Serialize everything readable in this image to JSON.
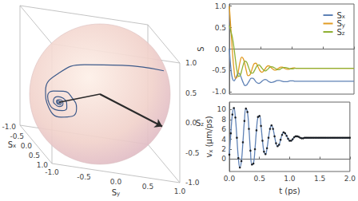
{
  "chart_data": [
    {
      "type": "bloch_sphere",
      "x_label": "Sx",
      "y_label": "Sy",
      "z_label": "Sz",
      "xlim": [
        -1,
        1
      ],
      "ylim": [
        -1,
        1
      ],
      "zlim": [
        -1,
        1
      ],
      "xticks": [
        {
          "value": -1,
          "label": "-1.0"
        },
        -0.5,
        {
          "value": 0,
          "label": "0.0"
        },
        0.5,
        {
          "value": 1,
          "label": "1.0"
        }
      ],
      "yticks": [
        {
          "value": -1,
          "label": "-1.0"
        },
        -0.5,
        {
          "value": 0,
          "label": "0.0"
        },
        0.5,
        {
          "value": 1,
          "label": "1.0"
        }
      ],
      "zticks": [
        {
          "value": -1,
          "label": "-1.0"
        },
        -0.5,
        {
          "value": 0,
          "label": "0.0"
        },
        0.5,
        {
          "value": 1,
          "label": "1.0"
        }
      ],
      "color": "#3d5a8a",
      "arrow": [
        0.3,
        0.9,
        -0.3
      ]
    },
    {
      "type": "line",
      "y_label": "S",
      "x": [
        0,
        0.025,
        0.05,
        0.075,
        0.1,
        0.125,
        0.15,
        0.175,
        0.2,
        0.225,
        0.25,
        0.275,
        0.3,
        0.325,
        0.35,
        0.375,
        0.4,
        0.425,
        0.45,
        0.475,
        0.5,
        0.525,
        0.55,
        0.575,
        0.6,
        0.625,
        0.65,
        0.675,
        0.7,
        0.725,
        0.75,
        0.775,
        0.8,
        0.825,
        0.85,
        0.875,
        0.9,
        0.925,
        0.95,
        0.975,
        1,
        1.025,
        1.05,
        1.075,
        1.1,
        1.125,
        1.15,
        1.175,
        1.2,
        1.225,
        1.25,
        1.275,
        1.3,
        1.325,
        1.35,
        1.375,
        1.4,
        1.425,
        1.45,
        1.475,
        1.5,
        1.525,
        1.55,
        1.575,
        1.6,
        1.625,
        1.65,
        1.675,
        1.7,
        1.725,
        1.75,
        1.775,
        1.8,
        1.825,
        1.85,
        1.875,
        1.9,
        1.925,
        1.95,
        1.975,
        2
      ],
      "series": [
        {
          "name": "Sx",
          "color": "#5e81b5",
          "values": [
            0.0,
            -0.45,
            -0.69,
            -0.74,
            -0.68,
            -0.6,
            -0.56,
            -0.61,
            -0.7,
            -0.79,
            -0.85,
            -0.84,
            -0.79,
            -0.73,
            -0.68,
            -0.68,
            -0.71,
            -0.76,
            -0.79,
            -0.8,
            -0.78,
            -0.75,
            -0.72,
            -0.71,
            -0.72,
            -0.75,
            -0.77,
            -0.78,
            -0.77,
            -0.76,
            -0.74,
            -0.73,
            -0.73,
            -0.74,
            -0.75,
            -0.76,
            -0.76,
            -0.76,
            -0.75,
            -0.74,
            -0.74,
            -0.74,
            -0.75,
            -0.75,
            -0.75,
            -0.75,
            -0.75,
            -0.75,
            -0.75,
            -0.75,
            -0.75,
            -0.75,
            -0.75,
            -0.75,
            -0.75,
            -0.75,
            -0.75,
            -0.75,
            -0.75,
            -0.75,
            -0.75,
            -0.75,
            -0.75,
            -0.75,
            -0.75,
            -0.75,
            -0.75,
            -0.75,
            -0.75,
            -0.75,
            -0.75,
            -0.75,
            -0.75,
            -0.75,
            -0.75,
            -0.75,
            -0.75,
            -0.75,
            -0.75,
            -0.75,
            -0.75
          ]
        },
        {
          "name": "Sy",
          "color": "#e19c24",
          "values": [
            1.0,
            0.46,
            -0.07,
            -0.48,
            -0.68,
            -0.65,
            -0.47,
            -0.28,
            -0.19,
            -0.23,
            -0.36,
            -0.52,
            -0.62,
            -0.61,
            -0.53,
            -0.42,
            -0.34,
            -0.33,
            -0.38,
            -0.46,
            -0.52,
            -0.54,
            -0.51,
            -0.46,
            -0.41,
            -0.39,
            -0.4,
            -0.44,
            -0.47,
            -0.49,
            -0.49,
            -0.46,
            -0.44,
            -0.42,
            -0.42,
            -0.44,
            -0.46,
            -0.47,
            -0.47,
            -0.46,
            -0.45,
            -0.44,
            -0.44,
            -0.45,
            -0.45,
            -0.45,
            -0.45,
            -0.45,
            -0.45,
            -0.45,
            -0.45,
            -0.45,
            -0.45,
            -0.45,
            -0.45,
            -0.45,
            -0.45,
            -0.45,
            -0.45,
            -0.45,
            -0.45,
            -0.45,
            -0.45,
            -0.45,
            -0.45,
            -0.45,
            -0.45,
            -0.45,
            -0.45,
            -0.45,
            -0.45,
            -0.45,
            -0.45,
            -0.45,
            -0.45,
            -0.45,
            -0.45,
            -0.45,
            -0.45,
            -0.45,
            -0.45
          ]
        },
        {
          "name": "Sz",
          "color": "#8fb032",
          "values": [
            0.55,
            0.41,
            0.26,
            0.02,
            -0.27,
            -0.52,
            -0.64,
            -0.61,
            -0.49,
            -0.36,
            -0.28,
            -0.3,
            -0.39,
            -0.49,
            -0.56,
            -0.56,
            -0.51,
            -0.44,
            -0.38,
            -0.37,
            -0.4,
            -0.45,
            -0.49,
            -0.51,
            -0.49,
            -0.46,
            -0.42,
            -0.41,
            -0.42,
            -0.44,
            -0.46,
            -0.48,
            -0.48,
            -0.46,
            -0.44,
            -0.43,
            -0.43,
            -0.44,
            -0.45,
            -0.46,
            -0.46,
            -0.46,
            -0.45,
            -0.45,
            -0.45,
            -0.45,
            -0.45,
            -0.45,
            -0.45,
            -0.45,
            -0.45,
            -0.45,
            -0.45,
            -0.45,
            -0.45,
            -0.45,
            -0.45,
            -0.45,
            -0.45,
            -0.45,
            -0.45,
            -0.45,
            -0.45,
            -0.45,
            -0.45,
            -0.45,
            -0.45,
            -0.45,
            -0.45,
            -0.45,
            -0.45,
            -0.45,
            -0.45,
            -0.45,
            -0.45,
            -0.45,
            -0.45,
            -0.45,
            -0.45,
            -0.45,
            -0.45
          ]
        }
      ],
      "xlim": [
        0,
        2
      ],
      "xticks": [
        0,
        0.5,
        1,
        1.5,
        2
      ],
      "ylim": [
        -1.05,
        1.05
      ],
      "yticks": [
        {
          "value": -1,
          "label": "-1.0"
        },
        -0.5,
        {
          "value": 0,
          "label": "0.0"
        },
        0.5,
        {
          "value": 1,
          "label": "1.0"
        }
      ],
      "legend": "upper right",
      "grid": false,
      "tick_labels": "y"
    },
    {
      "type": "line",
      "x_label": "t (ps)",
      "y_label": "vx (μm/ps)",
      "x": [
        0,
        0.025,
        0.05,
        0.075,
        0.1,
        0.125,
        0.15,
        0.175,
        0.2,
        0.225,
        0.25,
        0.275,
        0.3,
        0.325,
        0.35,
        0.375,
        0.4,
        0.425,
        0.45,
        0.475,
        0.5,
        0.525,
        0.55,
        0.575,
        0.6,
        0.625,
        0.65,
        0.675,
        0.7,
        0.725,
        0.75,
        0.775,
        0.8,
        0.825,
        0.85,
        0.875,
        0.9,
        0.925,
        0.95,
        0.975,
        1,
        1.025,
        1.05,
        1.075,
        1.1,
        1.125,
        1.15,
        1.175,
        1.2,
        1.225,
        1.25,
        1.275,
        1.3,
        1.325,
        1.35,
        1.375,
        1.4,
        1.425,
        1.45,
        1.475,
        1.5,
        1.525,
        1.55,
        1.575,
        1.6,
        1.625,
        1.65,
        1.675,
        1.7,
        1.725,
        1.75,
        1.775,
        1.8,
        1.825,
        1.85,
        1.875,
        1.9,
        1.925,
        1.95,
        1.975,
        2
      ],
      "series": [
        {
          "type": "scatter",
          "color": "#000000",
          "marker": "circle",
          "values": [
            0.9,
            5.2,
            9.0,
            10.3,
            8.4,
            4.3,
            0.2,
            -1.7,
            -0.4,
            3.4,
            7.7,
            10.2,
            9.5,
            6.1,
            1.7,
            -1.1,
            -0.9,
            2.0,
            5.8,
            8.5,
            8.7,
            6.7,
            3.7,
            1.5,
            1.0,
            2.2,
            4.3,
            6.1,
            6.8,
            6.1,
            4.6,
            3.2,
            2.6,
            2.9,
            3.9,
            4.9,
            5.4,
            5.2,
            4.7,
            4.1,
            3.7,
            3.7,
            4.0,
            4.4,
            4.6,
            4.6,
            4.5,
            4.3,
            4.2,
            4.2,
            4.3,
            4.3,
            4.3,
            4.3,
            4.3,
            4.3,
            4.3,
            4.3,
            4.3,
            4.3,
            4.3,
            4.3,
            4.3,
            4.3,
            4.3,
            4.3,
            4.3,
            4.3,
            4.3,
            4.3,
            4.3,
            4.3,
            4.3,
            4.3,
            4.3,
            4.3,
            4.3,
            4.3,
            4.3,
            4.3,
            4.3
          ]
        },
        {
          "type": "line",
          "color": "#5e81b5",
          "line_style": "solid",
          "values": [
            0.9,
            5.2,
            9.0,
            10.3,
            8.4,
            4.3,
            0.2,
            -1.7,
            -0.4,
            3.4,
            7.7,
            10.2,
            9.5,
            6.1,
            1.7,
            -1.1,
            -0.9,
            2.0,
            5.8,
            8.5,
            8.7,
            6.7,
            3.7,
            1.5,
            1.0,
            2.2,
            4.3,
            6.1,
            6.8,
            6.1,
            4.6,
            3.2,
            2.6,
            2.9,
            3.9,
            4.9,
            5.4,
            5.2,
            4.7,
            4.1,
            3.7,
            3.7,
            4.0,
            4.4,
            4.6,
            4.6,
            4.5,
            4.3,
            4.2,
            4.2,
            4.3,
            4.3,
            4.3,
            4.3,
            4.3,
            4.3,
            4.3,
            4.3,
            4.3,
            4.3,
            4.3,
            4.3,
            4.3,
            4.3,
            4.3,
            4.3,
            4.3,
            4.3,
            4.3,
            4.3,
            4.3,
            4.3,
            4.3,
            4.3,
            4.3,
            4.3,
            4.3,
            4.3,
            4.3,
            4.3,
            4.3
          ]
        }
      ],
      "xlim": [
        0,
        2
      ],
      "xticks": [
        {
          "value": 0,
          "label": "0.0"
        },
        0.5,
        {
          "value": 1,
          "label": "1.0"
        },
        1.5,
        {
          "value": 2,
          "label": "2.0"
        }
      ],
      "ylim": [
        -2.5,
        11.5
      ],
      "yticks": [
        0,
        2,
        4,
        6,
        8,
        10
      ],
      "grid": false
    }
  ]
}
